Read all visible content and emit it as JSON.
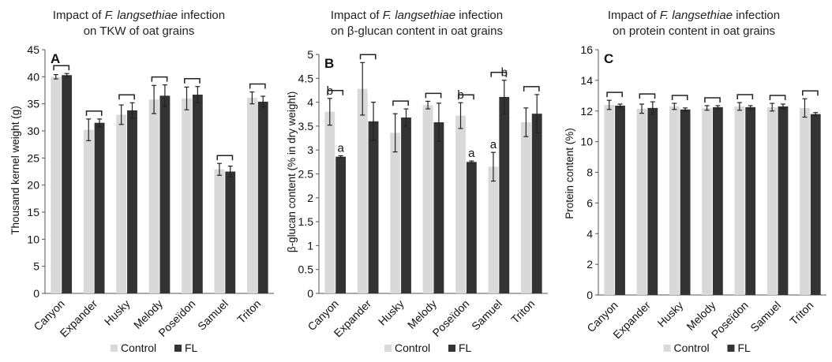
{
  "chart_data": [
    {
      "type": "bar",
      "panel_letter": "A",
      "title_line1_pre": "Impact of ",
      "title_line1_italic": "F. langsethiae",
      "title_line1_post": " infection",
      "title_line2": "on TKW of oat grains",
      "ylabel": "Thousand kernel weight (g)",
      "xlabel": "",
      "ylim": [
        0,
        45
      ],
      "ystep": 5,
      "categories": [
        "Canyon",
        "Expander",
        "Husky",
        "Melody",
        "Poseïdon",
        "Samuel",
        "Triton"
      ],
      "series": [
        {
          "name": "Control",
          "color": "#d9d9d9",
          "values": [
            40.0,
            30.2,
            33.0,
            35.8,
            36.0,
            22.9,
            36.1
          ],
          "errors": [
            0.4,
            2.0,
            1.8,
            2.6,
            2.1,
            1.1,
            1.1
          ],
          "letters": [
            "",
            "",
            "",
            "",
            "",
            "",
            ""
          ]
        },
        {
          "name": "FL",
          "color": "#333333",
          "values": [
            40.3,
            31.5,
            33.8,
            36.5,
            36.7,
            22.5,
            35.4
          ],
          "errors": [
            0.3,
            0.7,
            1.4,
            2.0,
            1.5,
            1.0,
            1.0
          ],
          "letters": [
            "",
            "",
            "",
            "",
            "",
            "",
            ""
          ]
        }
      ],
      "legend_position": "bottom",
      "grid": false,
      "brackets": true
    },
    {
      "type": "bar",
      "panel_letter": "B",
      "title_line1_pre": "Impact of ",
      "title_line1_italic": "F. langsethiae",
      "title_line1_post": " infection",
      "title_line2": "on β-glucan content in oat grains",
      "ylabel": "β-glucan content (% in dry weight)",
      "xlabel": "",
      "ylim": [
        0,
        5
      ],
      "ystep": 0.5,
      "categories": [
        "Canyon",
        "Expander",
        "Husky",
        "Melody",
        "Poseïdon",
        "Samuel",
        "Triton"
      ],
      "series": [
        {
          "name": "Control",
          "color": "#d9d9d9",
          "values": [
            3.8,
            4.28,
            3.36,
            3.94,
            3.72,
            2.65,
            3.58
          ],
          "errors": [
            0.28,
            0.55,
            0.4,
            0.08,
            0.27,
            0.3,
            0.3
          ],
          "letters": [
            "b",
            "",
            "",
            "",
            "b",
            "a",
            ""
          ]
        },
        {
          "name": "FL",
          "color": "#333333",
          "values": [
            2.86,
            3.6,
            3.68,
            3.58,
            2.75,
            4.11,
            3.76
          ],
          "errors": [
            0.02,
            0.4,
            0.18,
            0.4,
            0.02,
            0.35,
            0.4
          ],
          "letters": [
            "a",
            "",
            "",
            "",
            "a",
            "b",
            ""
          ]
        }
      ],
      "legend_position": "bottom",
      "grid": false,
      "brackets": true
    },
    {
      "type": "bar",
      "panel_letter": "C",
      "title_line1_pre": "Impact of ",
      "title_line1_italic": "F. langsethiae",
      "title_line1_post": " infection",
      "title_line2": "on protein content in oat grains",
      "ylabel": "Protein content (%)",
      "xlabel": "",
      "ylim": [
        0,
        16
      ],
      "ystep": 2,
      "categories": [
        "Canyon",
        "Expander",
        "Husky",
        "Melody",
        "Poseïdon",
        "Samuel",
        "Triton"
      ],
      "series": [
        {
          "name": "Control",
          "color": "#d9d9d9",
          "values": [
            12.4,
            12.15,
            12.3,
            12.2,
            12.3,
            12.25,
            12.2
          ],
          "errors": [
            0.3,
            0.3,
            0.2,
            0.15,
            0.25,
            0.25,
            0.6
          ],
          "letters": [
            "",
            "",
            "",
            "",
            "",
            "",
            ""
          ]
        },
        {
          "name": "FL",
          "color": "#333333",
          "values": [
            12.35,
            12.2,
            12.1,
            12.25,
            12.25,
            12.3,
            11.8
          ],
          "errors": [
            0.1,
            0.4,
            0.1,
            0.1,
            0.1,
            0.15,
            0.1
          ],
          "letters": [
            "",
            "",
            "",
            "",
            "",
            "",
            ""
          ]
        }
      ],
      "legend_position": "bottom",
      "grid": false,
      "brackets": true
    }
  ]
}
